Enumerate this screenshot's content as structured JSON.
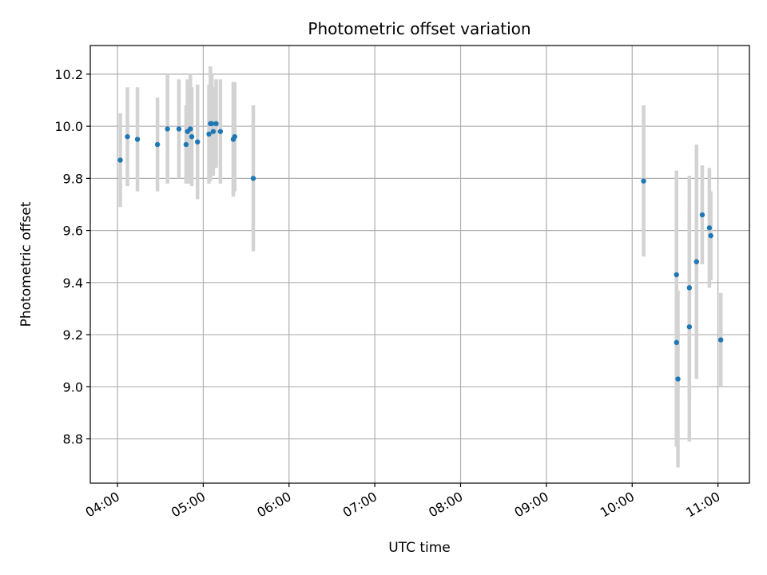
{
  "chart_data": {
    "type": "scatter",
    "title": "Photometric offset variation",
    "xlabel": "UTC time",
    "ylabel": "Photometric offset",
    "x_tick_labels": [
      "04:00",
      "05:00",
      "06:00",
      "07:00",
      "08:00",
      "09:00",
      "10:00",
      "11:00"
    ],
    "y_tick_labels": [
      "8.8",
      "9.0",
      "9.2",
      "9.4",
      "9.6",
      "9.8",
      "10.0",
      "10.2"
    ],
    "xlim": [
      "03:41",
      "11:22"
    ],
    "ylim": [
      8.63,
      10.31
    ],
    "grid": true,
    "colors": {
      "points": "#1f77b4",
      "errorbars": "#d3d3d3",
      "grid": "#b0b0b0"
    },
    "points": [
      {
        "x": "04:02",
        "y": 9.87,
        "yerr": 0.18
      },
      {
        "x": "04:07",
        "y": 9.96,
        "yerr": 0.19
      },
      {
        "x": "04:14",
        "y": 9.95,
        "yerr": 0.2
      },
      {
        "x": "04:28",
        "y": 9.93,
        "yerr": 0.18
      },
      {
        "x": "04:35",
        "y": 9.99,
        "yerr": 0.21
      },
      {
        "x": "04:43",
        "y": 9.99,
        "yerr": 0.19
      },
      {
        "x": "04:48",
        "y": 9.93,
        "yerr": 0.15
      },
      {
        "x": "04:49",
        "y": 9.98,
        "yerr": 0.2
      },
      {
        "x": "04:51",
        "y": 9.99,
        "yerr": 0.21
      },
      {
        "x": "04:52",
        "y": 9.96,
        "yerr": 0.19
      },
      {
        "x": "04:56",
        "y": 9.94,
        "yerr": 0.22
      },
      {
        "x": "05:04",
        "y": 9.97,
        "yerr": 0.19
      },
      {
        "x": "05:05",
        "y": 10.01,
        "yerr": 0.22
      },
      {
        "x": "05:06",
        "y": 10.01,
        "yerr": 0.19
      },
      {
        "x": "05:07",
        "y": 9.98,
        "yerr": 0.17
      },
      {
        "x": "05:09",
        "y": 10.01,
        "yerr": 0.17
      },
      {
        "x": "05:12",
        "y": 9.98,
        "yerr": 0.2
      },
      {
        "x": "05:21",
        "y": 9.95,
        "yerr": 0.22
      },
      {
        "x": "05:22",
        "y": 9.96,
        "yerr": 0.21
      },
      {
        "x": "05:35",
        "y": 9.8,
        "yerr": 0.28
      },
      {
        "x": "10:08",
        "y": 9.79,
        "yerr": 0.29
      },
      {
        "x": "10:31",
        "y": 9.43,
        "yerr": 0.4
      },
      {
        "x": "10:31",
        "y": 9.17,
        "yerr": 0.4
      },
      {
        "x": "10:32",
        "y": 9.03,
        "yerr": 0.34
      },
      {
        "x": "10:40",
        "y": 9.38,
        "yerr": 0.43
      },
      {
        "x": "10:40",
        "y": 9.23,
        "yerr": 0.44
      },
      {
        "x": "10:45",
        "y": 9.48,
        "yerr": 0.45
      },
      {
        "x": "10:49",
        "y": 9.66,
        "yerr": 0.19
      },
      {
        "x": "10:54",
        "y": 9.61,
        "yerr": 0.23
      },
      {
        "x": "10:55",
        "y": 9.58,
        "yerr": 0.17
      },
      {
        "x": "11:02",
        "y": 9.18,
        "yerr": 0.18
      }
    ]
  }
}
